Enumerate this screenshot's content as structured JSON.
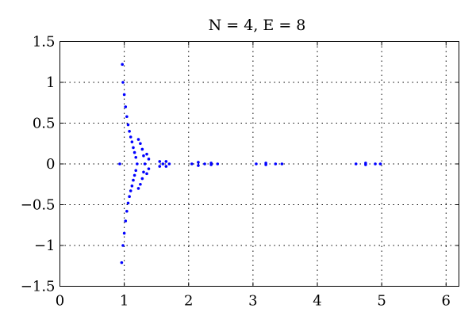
{
  "chart_data": {
    "type": "scatter",
    "title": "N = 4, E = 8",
    "xlabel": "",
    "ylabel": "",
    "xlim": [
      0,
      6.2
    ],
    "ylim": [
      -1.5,
      1.5
    ],
    "x_ticks": [
      "0",
      "1",
      "2",
      "3",
      "4",
      "5",
      "6"
    ],
    "y_ticks": [
      "1.5",
      "1",
      "0.5",
      "0",
      "−0.5",
      "−1",
      "−1.5"
    ],
    "grid": true,
    "marker_color": "#0000ff",
    "series": [
      {
        "points": [
          [
            0.93,
            0.0
          ],
          [
            0.97,
            1.22
          ],
          [
            0.96,
            -1.21
          ],
          [
            0.98,
            1.0
          ],
          [
            0.98,
            -1.0
          ],
          [
            1.0,
            0.85
          ],
          [
            1.0,
            -0.85
          ],
          [
            1.02,
            0.7
          ],
          [
            1.02,
            -0.7
          ],
          [
            1.04,
            0.58
          ],
          [
            1.04,
            -0.58
          ],
          [
            1.06,
            0.48
          ],
          [
            1.06,
            -0.48
          ],
          [
            1.08,
            0.4
          ],
          [
            1.08,
            -0.4
          ],
          [
            1.1,
            0.33
          ],
          [
            1.1,
            -0.33
          ],
          [
            1.12,
            0.27
          ],
          [
            1.12,
            -0.27
          ],
          [
            1.14,
            0.2
          ],
          [
            1.14,
            -0.2
          ],
          [
            1.16,
            0.14
          ],
          [
            1.16,
            -0.14
          ],
          [
            1.18,
            0.08
          ],
          [
            1.18,
            -0.08
          ],
          [
            1.2,
            0.0
          ],
          [
            1.22,
            0.3
          ],
          [
            1.22,
            -0.3
          ],
          [
            1.25,
            0.25
          ],
          [
            1.25,
            -0.25
          ],
          [
            1.28,
            0.18
          ],
          [
            1.28,
            -0.18
          ],
          [
            1.3,
            0.1
          ],
          [
            1.3,
            -0.1
          ],
          [
            1.32,
            0.0
          ],
          [
            1.35,
            0.12
          ],
          [
            1.35,
            -0.12
          ],
          [
            1.38,
            0.06
          ],
          [
            1.38,
            -0.06
          ],
          [
            1.55,
            0.03
          ],
          [
            1.55,
            -0.03
          ],
          [
            1.6,
            0.0
          ],
          [
            1.65,
            0.03
          ],
          [
            1.65,
            -0.03
          ],
          [
            1.7,
            0.0
          ],
          [
            2.05,
            0.0
          ],
          [
            2.15,
            0.02
          ],
          [
            2.15,
            -0.02
          ],
          [
            2.25,
            0.0
          ],
          [
            2.35,
            0.01
          ],
          [
            2.35,
            -0.01
          ],
          [
            2.45,
            0.0
          ],
          [
            3.05,
            0.0
          ],
          [
            3.2,
            0.01
          ],
          [
            3.2,
            -0.01
          ],
          [
            3.35,
            0.0
          ],
          [
            3.45,
            0.0
          ],
          [
            4.6,
            0.0
          ],
          [
            4.75,
            0.01
          ],
          [
            4.75,
            -0.01
          ],
          [
            4.9,
            0.0
          ],
          [
            4.98,
            0.0
          ]
        ]
      }
    ]
  }
}
